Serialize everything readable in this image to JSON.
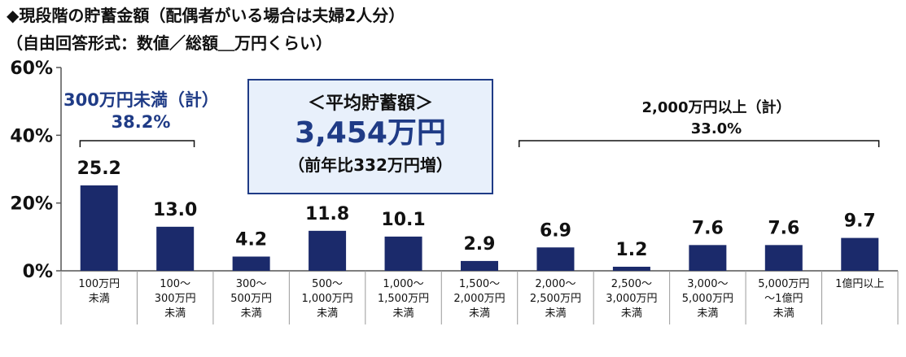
{
  "title": "◆現段階の貯蓄金額（配偶者がいる場合は夫婦2人分）",
  "subtitle": "（自由回答形式：数値／総額＿万円くらい）",
  "callout": {
    "heading": "＜平均貯蓄額＞",
    "value": "3,454万円",
    "note": "（前年比332万円増）"
  },
  "groups": {
    "left": {
      "line1": "300万円未満（計）",
      "line2": "38.2%"
    },
    "right": {
      "line1": "2,000万円以上（計）",
      "line2": "33.0%"
    }
  },
  "colors": {
    "bar": "#1b2a6b",
    "accent": "#1f3b86",
    "callout_bg": "#e8f0fb",
    "axis": "#555555"
  },
  "chart_data": {
    "type": "bar",
    "categories": [
      [
        "100万円",
        "未満"
      ],
      [
        "100～",
        "300万円",
        "未満"
      ],
      [
        "300～",
        "500万円",
        "未満"
      ],
      [
        "500～",
        "1,000万円",
        "未満"
      ],
      [
        "1,000～",
        "1,500万円",
        "未満"
      ],
      [
        "1,500～",
        "2,000万円",
        "未満"
      ],
      [
        "2,000～",
        "2,500万円",
        "未満"
      ],
      [
        "2,500～",
        "3,000万円",
        "未満"
      ],
      [
        "3,000～",
        "5,000万円",
        "未満"
      ],
      [
        "5,000万円",
        "～1億円",
        "未満"
      ],
      [
        "1億円以上"
      ]
    ],
    "values": [
      25.2,
      13.0,
      4.2,
      11.8,
      10.1,
      2.9,
      6.9,
      1.2,
      7.6,
      7.6,
      9.7
    ],
    "value_labels": [
      "25.2",
      "13.0",
      "4.2",
      "11.8",
      "10.1",
      "2.9",
      "6.9",
      "1.2",
      "7.6",
      "7.6",
      "9.7"
    ],
    "ylim": [
      0,
      60
    ],
    "yticks": [
      0,
      20,
      40,
      60
    ],
    "ytick_labels": [
      "0%",
      "20%",
      "40%",
      "60%"
    ],
    "xlabel": "",
    "ylabel": "",
    "grid": false
  }
}
